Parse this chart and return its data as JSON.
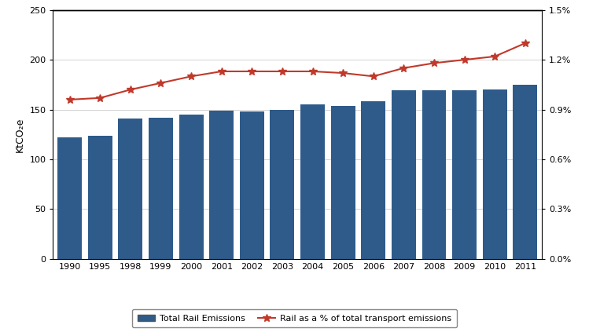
{
  "years": [
    "1990",
    "1995",
    "1998",
    "1999",
    "2000",
    "2001",
    "2002",
    "2003",
    "2004",
    "2005",
    "2006",
    "2007",
    "2008",
    "2009",
    "2010",
    "2011"
  ],
  "rail_emissions": [
    122,
    124,
    141,
    142,
    145,
    149,
    148,
    150,
    155,
    154,
    158,
    169,
    169,
    169,
    170,
    175
  ],
  "rail_pct": [
    0.0096,
    0.0097,
    0.0102,
    0.0106,
    0.011,
    0.0113,
    0.0113,
    0.0113,
    0.0113,
    0.0112,
    0.011,
    0.0115,
    0.0118,
    0.012,
    0.0122,
    0.013
  ],
  "bar_color": "#2E5B8A",
  "line_color": "#C0392B",
  "ylabel_left": "KtCO₂e",
  "ylim_left": [
    0,
    250
  ],
  "ylim_right": [
    0,
    0.015
  ],
  "yticks_left": [
    0,
    50,
    100,
    150,
    200,
    250
  ],
  "yticks_right": [
    0.0,
    0.003,
    0.006,
    0.009,
    0.012,
    0.015
  ],
  "ytick_labels_right": [
    "0.0%",
    "0.3%",
    "0.6%",
    "0.9%",
    "1.2%",
    "1.5%"
  ],
  "legend_bar_label": "Total Rail Emissions",
  "legend_line_label": "Rail as a % of total transport emissions",
  "background_color": "#ffffff",
  "grid_color": "#cccccc",
  "bar_width": 0.8,
  "figsize": [
    7.49,
    4.23
  ],
  "dpi": 100
}
